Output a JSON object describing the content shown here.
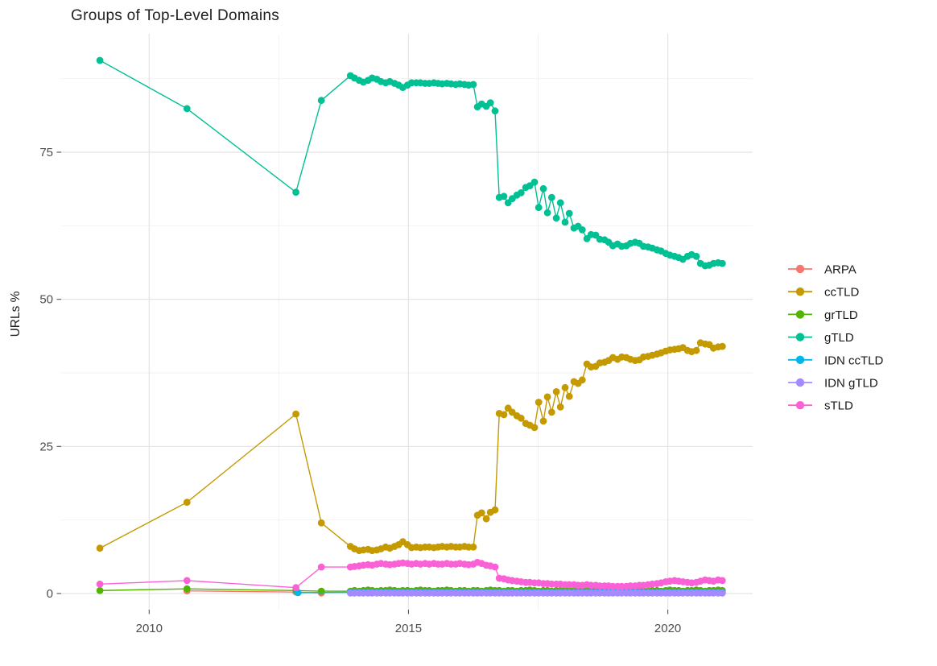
{
  "window": {
    "title": "Groups of Top-Level Domains"
  },
  "chart_data": {
    "type": "line",
    "title": "Groups of Top-Level Domains",
    "xlabel": "",
    "ylabel": "URLs %",
    "grid": true,
    "legend_position": "right",
    "x_range": [
      2008.3,
      2021.6
    ],
    "y_range": [
      -2.7,
      95.1
    ],
    "x_ticks": {
      "major": [
        2010,
        2015,
        2020
      ],
      "minor": [
        2012.5,
        2017.5
      ],
      "labels": [
        "2010",
        "2015",
        "2020"
      ]
    },
    "y_ticks": {
      "major": [
        0,
        25,
        50,
        75
      ],
      "minor": [
        12.5,
        37.5,
        62.5,
        87.5
      ],
      "labels": [
        "0",
        "25",
        "50",
        "75"
      ]
    },
    "dense_x": [
      2013.88,
      2013.96,
      2014.05,
      2014.13,
      2014.22,
      2014.3,
      2014.39,
      2014.47,
      2014.56,
      2014.64,
      2014.73,
      2014.81,
      2014.89,
      2014.98,
      2015.06,
      2015.15,
      2015.23,
      2015.32,
      2015.4,
      2015.49,
      2015.57,
      2015.65,
      2015.74,
      2015.82,
      2015.91,
      2015.99,
      2016.08,
      2016.16,
      2016.25,
      2016.33,
      2016.41,
      2016.5,
      2016.58,
      2016.67,
      2016.75,
      2016.84,
      2016.92,
      2017.0,
      2017.09,
      2017.17,
      2017.26,
      2017.34,
      2017.43,
      2017.51,
      2017.6,
      2017.68,
      2017.76,
      2017.85,
      2017.93,
      2018.02,
      2018.1,
      2018.19,
      2018.27,
      2018.35,
      2018.44,
      2018.52,
      2018.61,
      2018.69,
      2018.78,
      2018.86,
      2018.94,
      2019.03,
      2019.11,
      2019.2,
      2019.28,
      2019.37,
      2019.45,
      2019.53,
      2019.62,
      2019.7,
      2019.79,
      2019.87,
      2019.96,
      2020.04,
      2020.13,
      2020.21,
      2020.29,
      2020.38,
      2020.46,
      2020.55,
      2020.63,
      2020.72,
      2020.8,
      2020.88,
      2020.97,
      2021.05
    ],
    "series": [
      {
        "name": "ARPA",
        "color": "#F8766D",
        "pre_x": [
          2010.73,
          2012.83,
          2013.32
        ],
        "pre_y": [
          0.45,
          0.25,
          0.1
        ]
      },
      {
        "name": "ccTLD",
        "color": "#C49A00",
        "pre_x": [
          2009.05,
          2010.73,
          2012.83,
          2013.32
        ],
        "pre_y": [
          7.7,
          15.5,
          30.5,
          12.0
        ],
        "dense_y": [
          8.0,
          7.6,
          7.3,
          7.4,
          7.5,
          7.3,
          7.4,
          7.6,
          7.9,
          7.7,
          8.0,
          8.3,
          8.8,
          8.3,
          7.8,
          7.9,
          7.8,
          7.9,
          7.9,
          7.8,
          7.9,
          8.0,
          7.9,
          8.0,
          7.9,
          7.9,
          8.0,
          7.9,
          7.9,
          13.3,
          13.7,
          12.7,
          13.8,
          14.2,
          30.6,
          30.4,
          31.5,
          30.8,
          30.2,
          29.8,
          28.9,
          28.6,
          28.2,
          32.5,
          29.3,
          33.4,
          30.8,
          34.3,
          31.7,
          35.0,
          33.5,
          36.0,
          35.7,
          36.3,
          39.0,
          38.5,
          38.6,
          39.2,
          39.3,
          39.6,
          40.1,
          39.8,
          40.2,
          40.1,
          39.8,
          39.6,
          39.7,
          40.2,
          40.3,
          40.5,
          40.7,
          40.9,
          41.2,
          41.4,
          41.5,
          41.6,
          41.8,
          41.3,
          41.1,
          41.3,
          42.6,
          42.4,
          42.3,
          41.7,
          41.9,
          42.0
        ]
      },
      {
        "name": "grTLD",
        "color": "#53B400",
        "pre_x": [
          2009.05,
          2010.73,
          2012.83,
          2013.32
        ],
        "pre_y": [
          0.5,
          0.8,
          0.5,
          0.4
        ],
        "dense_y": [
          0.4,
          0.5,
          0.4,
          0.5,
          0.6,
          0.5,
          0.4,
          0.5,
          0.5,
          0.6,
          0.5,
          0.4,
          0.5,
          0.5,
          0.4,
          0.5,
          0.6,
          0.5,
          0.5,
          0.4,
          0.5,
          0.5,
          0.6,
          0.5,
          0.4,
          0.5,
          0.5,
          0.4,
          0.5,
          0.5,
          0.4,
          0.5,
          0.6,
          0.5,
          0.5,
          0.4,
          0.5,
          0.5,
          0.4,
          0.5,
          0.5,
          0.6,
          0.5,
          0.4,
          0.5,
          0.5,
          0.4,
          0.5,
          0.5,
          0.6,
          0.5,
          0.5,
          0.4,
          0.5,
          0.5,
          0.4,
          0.5,
          0.6,
          0.5,
          0.5,
          0.4,
          0.5,
          0.5,
          0.4,
          0.5,
          0.5,
          0.6,
          0.5,
          0.4,
          0.5,
          0.5,
          0.4,
          0.5,
          0.6,
          0.5,
          0.5,
          0.4,
          0.5,
          0.5,
          0.6,
          0.5,
          0.4,
          0.5,
          0.5,
          0.6,
          0.5
        ]
      },
      {
        "name": "gTLD",
        "color": "#00C094",
        "pre_x": [
          2009.05,
          2010.73,
          2012.83,
          2013.32
        ],
        "pre_y": [
          90.6,
          82.4,
          68.2,
          83.8
        ],
        "dense_y": [
          88.0,
          87.6,
          87.2,
          86.9,
          87.2,
          87.6,
          87.4,
          87.0,
          86.8,
          87.0,
          86.7,
          86.4,
          86.0,
          86.4,
          86.8,
          86.8,
          86.8,
          86.7,
          86.7,
          86.8,
          86.7,
          86.6,
          86.7,
          86.6,
          86.5,
          86.6,
          86.5,
          86.4,
          86.5,
          82.7,
          83.2,
          82.8,
          83.4,
          82.0,
          67.3,
          67.5,
          66.4,
          67.1,
          67.7,
          68.1,
          69.0,
          69.3,
          69.9,
          65.6,
          68.8,
          64.7,
          67.3,
          63.8,
          66.4,
          63.1,
          64.6,
          62.1,
          62.4,
          61.8,
          60.3,
          61.0,
          60.9,
          60.2,
          60.1,
          59.7,
          59.1,
          59.4,
          59.0,
          59.1,
          59.5,
          59.7,
          59.5,
          59.0,
          58.9,
          58.7,
          58.4,
          58.2,
          57.8,
          57.5,
          57.3,
          57.1,
          56.8,
          57.3,
          57.6,
          57.3,
          56.1,
          55.7,
          55.8,
          56.1,
          56.2,
          56.1
        ]
      },
      {
        "name": "IDN ccTLD",
        "color": "#00B6EB",
        "pre_x": [
          2012.87
        ],
        "pre_y": [
          0.15
        ],
        "dense_y_const": 0.2
      },
      {
        "name": "IDN gTLD",
        "color": "#A58AFF",
        "dense_y_const": 0.08
      },
      {
        "name": "sTLD",
        "color": "#FB61D7",
        "pre_x": [
          2009.05,
          2010.73,
          2012.83,
          2013.32
        ],
        "pre_y": [
          1.6,
          2.2,
          1.0,
          4.5
        ],
        "dense_y": [
          4.5,
          4.6,
          4.7,
          4.8,
          4.9,
          4.8,
          5.0,
          5.1,
          5.0,
          4.9,
          5.0,
          5.1,
          5.2,
          5.1,
          5.0,
          5.1,
          5.0,
          5.1,
          5.0,
          5.1,
          5.0,
          5.0,
          5.1,
          5.0,
          5.0,
          5.1,
          5.0,
          4.9,
          5.0,
          5.3,
          5.1,
          4.8,
          4.7,
          4.5,
          2.6,
          2.5,
          2.3,
          2.2,
          2.1,
          2.0,
          1.9,
          1.9,
          1.8,
          1.8,
          1.7,
          1.7,
          1.6,
          1.6,
          1.6,
          1.5,
          1.5,
          1.5,
          1.4,
          1.4,
          1.5,
          1.4,
          1.4,
          1.3,
          1.3,
          1.3,
          1.2,
          1.2,
          1.2,
          1.2,
          1.3,
          1.3,
          1.4,
          1.4,
          1.5,
          1.6,
          1.7,
          1.8,
          2.0,
          2.1,
          2.2,
          2.1,
          2.0,
          1.9,
          1.8,
          1.9,
          2.1,
          2.3,
          2.2,
          2.1,
          2.3,
          2.2
        ]
      }
    ]
  }
}
